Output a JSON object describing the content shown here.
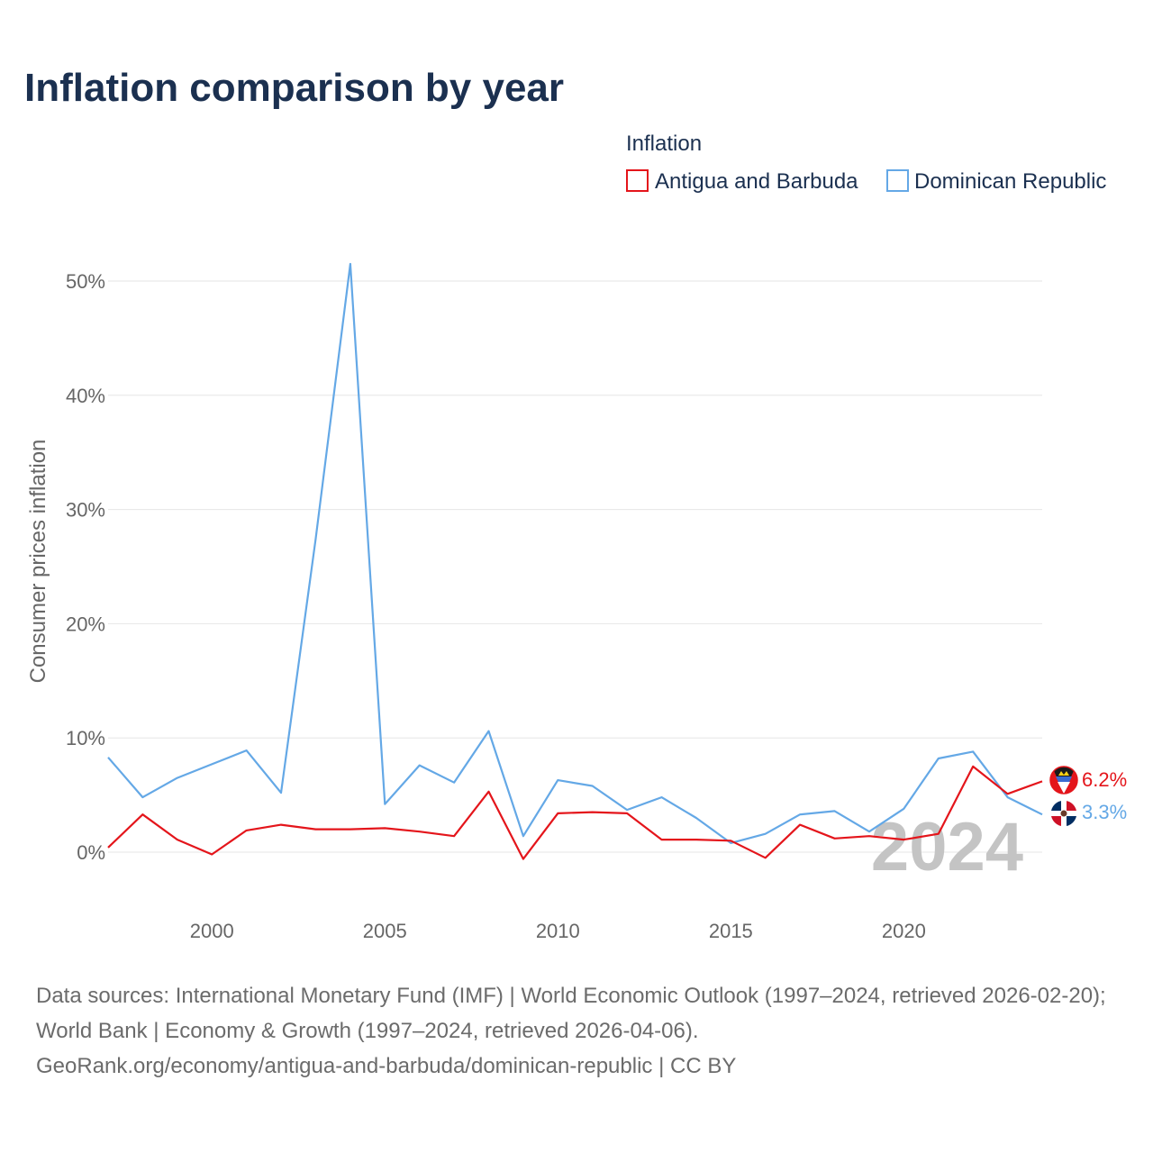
{
  "title": "Inflation comparison by year",
  "legend": {
    "title": "Inflation",
    "items": [
      {
        "label": "Antigua and Barbuda",
        "color": "#e4151b"
      },
      {
        "label": "Dominican Republic",
        "color": "#64a8e6"
      }
    ]
  },
  "watermark_year": "2024",
  "source": {
    "line1": "Data sources: International Monetary Fund (IMF) | World Economic Outlook (1997–2024, retrieved 2026-02-20); World Bank | Economy & Growth (1997–2024, retrieved 2026-04-06).",
    "line2": "GeoRank.org/economy/antigua-and-barbuda/dominican-republic | CC BY"
  },
  "chart_data": {
    "type": "line",
    "title": "Inflation comparison by year",
    "xlabel": "",
    "ylabel": "Consumer prices inflation",
    "xlim": [
      1997,
      2024
    ],
    "ylim": [
      -3.5,
      53
    ],
    "x_ticks": [
      2000,
      2005,
      2010,
      2015,
      2020
    ],
    "x_tick_labels": [
      "2000",
      "2005",
      "2010",
      "2015",
      "2020"
    ],
    "y_ticks": [
      0,
      10,
      20,
      30,
      40,
      50
    ],
    "y_tick_labels": [
      "0%",
      "10%",
      "20%",
      "30%",
      "40%",
      "50%"
    ],
    "x": [
      1997,
      1998,
      1999,
      2000,
      2001,
      2002,
      2003,
      2004,
      2005,
      2006,
      2007,
      2008,
      2009,
      2010,
      2011,
      2012,
      2013,
      2014,
      2015,
      2016,
      2017,
      2018,
      2019,
      2020,
      2021,
      2022,
      2023,
      2024
    ],
    "series": [
      {
        "name": "Antigua and Barbuda",
        "color": "#e4151b",
        "values": [
          0.4,
          3.3,
          1.1,
          -0.2,
          1.9,
          2.4,
          2.0,
          2.0,
          2.1,
          1.8,
          1.4,
          5.3,
          -0.6,
          3.4,
          3.5,
          3.4,
          1.1,
          1.1,
          1.0,
          -0.5,
          2.4,
          1.2,
          1.4,
          1.1,
          1.6,
          7.5,
          5.1,
          6.2
        ],
        "end_label": "6.2%"
      },
      {
        "name": "Dominican Republic",
        "color": "#64a8e6",
        "values": [
          8.3,
          4.8,
          6.5,
          7.7,
          8.9,
          5.2,
          27.4,
          51.5,
          4.2,
          7.6,
          6.1,
          10.6,
          1.4,
          6.3,
          5.8,
          3.7,
          4.8,
          3.0,
          0.8,
          1.6,
          3.3,
          3.6,
          1.8,
          3.8,
          8.2,
          8.8,
          4.8,
          3.3
        ],
        "end_label": "3.3%"
      }
    ]
  }
}
